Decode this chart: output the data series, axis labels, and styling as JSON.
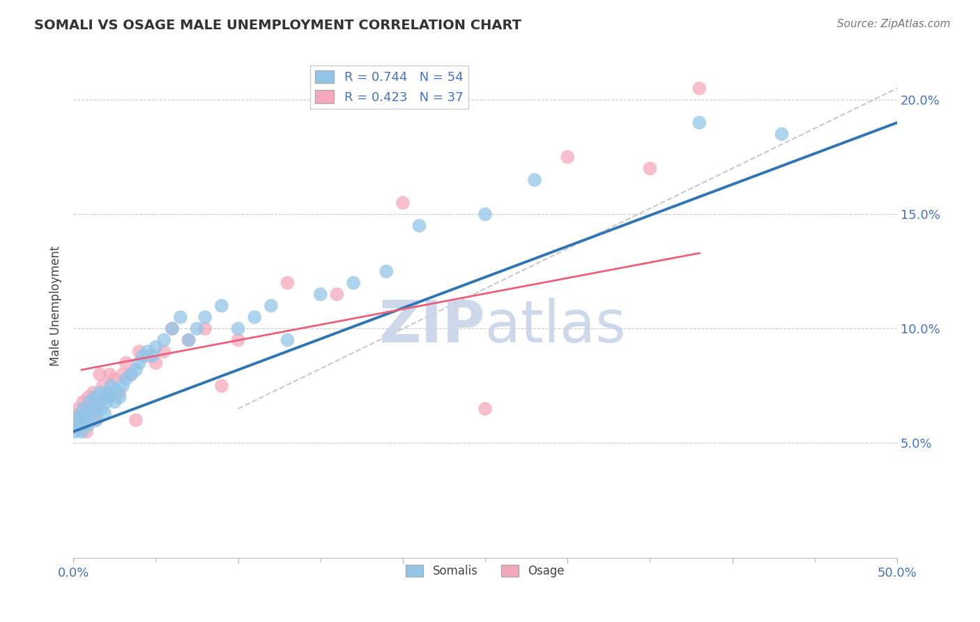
{
  "title": "SOMALI VS OSAGE MALE UNEMPLOYMENT CORRELATION CHART",
  "source": "Source: ZipAtlas.com",
  "ylabel": "Male Unemployment",
  "xlim": [
    0.0,
    0.5
  ],
  "ylim": [
    0.0,
    0.22
  ],
  "ytick_positions": [
    0.05,
    0.1,
    0.15,
    0.2
  ],
  "ytick_labels": [
    "5.0%",
    "10.0%",
    "15.0%",
    "20.0%"
  ],
  "somali_R": 0.744,
  "somali_N": 54,
  "osage_R": 0.423,
  "osage_N": 37,
  "somali_color": "#92C5E8",
  "osage_color": "#F5A8BC",
  "somali_line_color": "#2E75B6",
  "osage_line_color": "#E8607A",
  "diag_line_color": "#BBBBBB",
  "background_color": "#FFFFFF",
  "grid_color": "#CCCCCC",
  "watermark_color": "#C8D4E8",
  "somali_x": [
    0.001,
    0.002,
    0.003,
    0.004,
    0.005,
    0.006,
    0.007,
    0.008,
    0.009,
    0.01,
    0.01,
    0.012,
    0.013,
    0.014,
    0.015,
    0.016,
    0.017,
    0.018,
    0.019,
    0.02,
    0.021,
    0.022,
    0.023,
    0.025,
    0.026,
    0.028,
    0.03,
    0.032,
    0.035,
    0.038,
    0.04,
    0.042,
    0.045,
    0.048,
    0.05,
    0.055,
    0.06,
    0.065,
    0.07,
    0.075,
    0.08,
    0.09,
    0.1,
    0.11,
    0.12,
    0.13,
    0.15,
    0.17,
    0.19,
    0.21,
    0.25,
    0.28,
    0.38,
    0.43
  ],
  "somali_y": [
    0.055,
    0.06,
    0.058,
    0.062,
    0.055,
    0.065,
    0.06,
    0.063,
    0.058,
    0.062,
    0.068,
    0.065,
    0.07,
    0.06,
    0.068,
    0.072,
    0.065,
    0.07,
    0.063,
    0.068,
    0.072,
    0.07,
    0.075,
    0.068,
    0.073,
    0.07,
    0.075,
    0.078,
    0.08,
    0.082,
    0.085,
    0.088,
    0.09,
    0.088,
    0.092,
    0.095,
    0.1,
    0.105,
    0.095,
    0.1,
    0.105,
    0.11,
    0.1,
    0.105,
    0.11,
    0.095,
    0.115,
    0.12,
    0.125,
    0.145,
    0.15,
    0.165,
    0.19,
    0.185
  ],
  "osage_x": [
    0.001,
    0.002,
    0.003,
    0.005,
    0.006,
    0.008,
    0.009,
    0.01,
    0.012,
    0.013,
    0.015,
    0.016,
    0.018,
    0.02,
    0.022,
    0.025,
    0.028,
    0.03,
    0.032,
    0.035,
    0.038,
    0.04,
    0.045,
    0.05,
    0.055,
    0.06,
    0.07,
    0.08,
    0.09,
    0.1,
    0.13,
    0.16,
    0.2,
    0.25,
    0.3,
    0.35,
    0.38
  ],
  "osage_y": [
    0.062,
    0.058,
    0.065,
    0.06,
    0.068,
    0.055,
    0.07,
    0.065,
    0.072,
    0.06,
    0.065,
    0.08,
    0.075,
    0.07,
    0.08,
    0.078,
    0.072,
    0.08,
    0.085,
    0.08,
    0.06,
    0.09,
    0.088,
    0.085,
    0.09,
    0.1,
    0.095,
    0.1,
    0.075,
    0.095,
    0.12,
    0.115,
    0.155,
    0.065,
    0.175,
    0.17,
    0.205
  ],
  "somali_line_x": [
    0.0,
    0.5
  ],
  "somali_line_y": [
    0.055,
    0.19
  ],
  "osage_line_x": [
    0.005,
    0.38
  ],
  "osage_line_y": [
    0.082,
    0.133
  ],
  "diag_line_x": [
    0.1,
    0.5
  ],
  "diag_line_y": [
    0.065,
    0.205
  ]
}
